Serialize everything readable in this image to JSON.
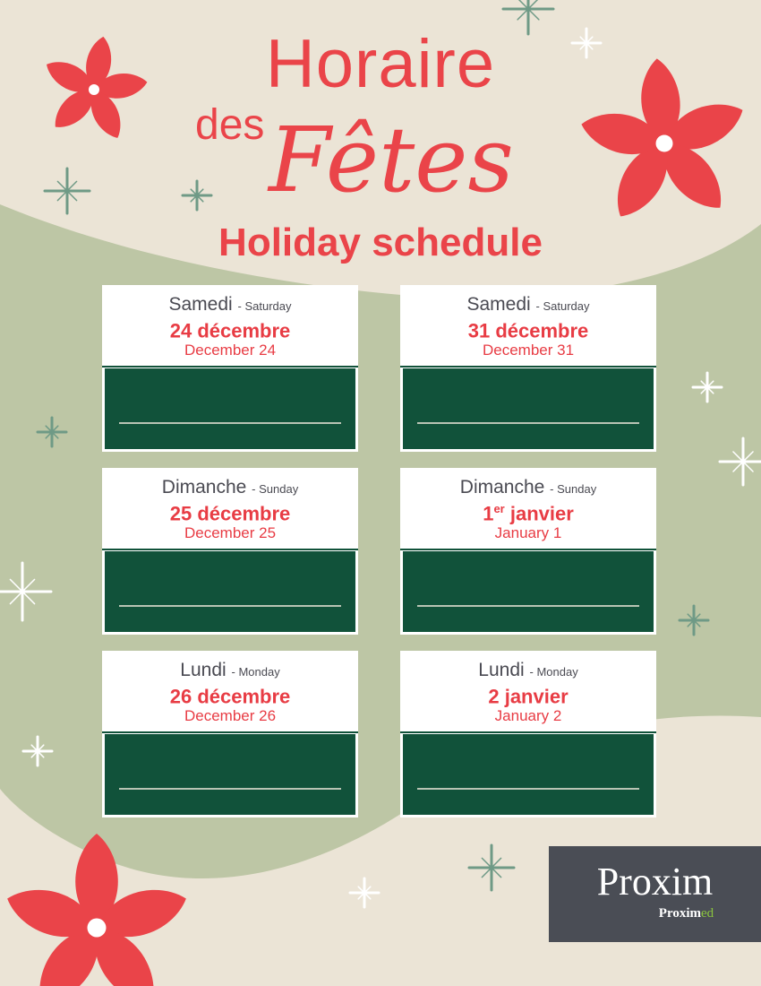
{
  "header": {
    "title_line1": "Horaire",
    "title_des": "des",
    "title_fetes": "Fêtes",
    "subtitle": "Holiday schedule"
  },
  "cards": [
    {
      "day_fr": "Samedi",
      "day_en": "- Saturday",
      "date_fr": "24 décembre",
      "date_fr_sup": "",
      "date_fr_rest": "",
      "date_en": "December 24"
    },
    {
      "day_fr": "Samedi",
      "day_en": "- Saturday",
      "date_fr": "31 décembre",
      "date_fr_sup": "",
      "date_fr_rest": "",
      "date_en": "December 31"
    },
    {
      "day_fr": "Dimanche",
      "day_en": "- Sunday",
      "date_fr": "25 décembre",
      "date_fr_sup": "",
      "date_fr_rest": "",
      "date_en": "December 25"
    },
    {
      "day_fr": "Dimanche",
      "day_en": "- Sunday",
      "date_fr": "1",
      "date_fr_sup": "er",
      "date_fr_rest": " janvier",
      "date_en": "January 1"
    },
    {
      "day_fr": "Lundi",
      "day_en": "- Monday",
      "date_fr": "26 décembre",
      "date_fr_sup": "",
      "date_fr_rest": "",
      "date_en": "December 26"
    },
    {
      "day_fr": "Lundi",
      "day_en": "- Monday",
      "date_fr": "2 janvier",
      "date_fr_sup": "",
      "date_fr_rest": "",
      "date_en": "January 2"
    }
  ],
  "logo": {
    "main": "Proxim",
    "sub_a": "Proxim",
    "sub_b": "ed"
  },
  "colors": {
    "red": "#ea4449",
    "dark_green": "#11523a",
    "sage": "#bdc6a5",
    "cream": "#ebe4d6",
    "logo_bg": "#4a4d55",
    "lime": "#8bc53f"
  }
}
